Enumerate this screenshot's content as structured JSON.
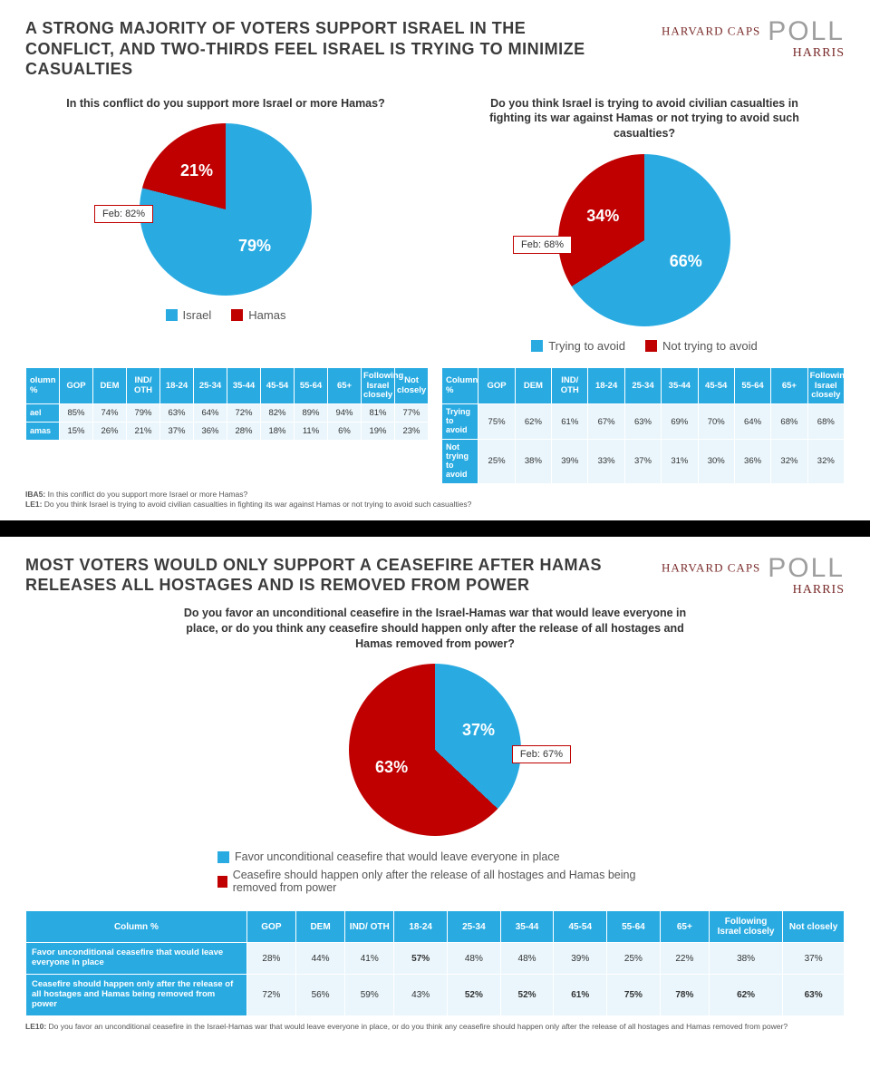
{
  "brand": {
    "line1": "HARVARD CAPS",
    "line2": "HARRIS",
    "poll": "POLL"
  },
  "colors": {
    "blue": "#29abe2",
    "red": "#c00000",
    "tableHeader": "#29abe2",
    "tableCell": "#eaf6fc",
    "text": "#333333"
  },
  "panel1": {
    "headline": "A STRONG MAJORITY OF VOTERS SUPPORT ISRAEL IN THE CONFLICT, AND TWO-THIRDS FEEL ISRAEL IS TRYING TO MINIMIZE CASUALTIES",
    "chartA": {
      "type": "pie",
      "question": "In this conflict do you support more Israel or more Hamas?",
      "slices": [
        {
          "label": "Israel",
          "value": 79,
          "color": "#29abe2"
        },
        {
          "label": "Hamas",
          "value": 21,
          "color": "#c00000"
        }
      ],
      "feb": "Feb: 82%",
      "legend": [
        "Israel",
        "Hamas"
      ],
      "label_fontsize": 18,
      "start_angle": -90
    },
    "chartB": {
      "type": "pie",
      "question": "Do you think Israel is trying to avoid civilian casualties in fighting its war against Hamas or not trying to avoid such casualties?",
      "slices": [
        {
          "label": "Trying to avoid",
          "value": 66,
          "color": "#29abe2"
        },
        {
          "label": "Not trying to avoid",
          "value": 34,
          "color": "#c00000"
        }
      ],
      "feb": "Feb: 68%",
      "legend": [
        "Trying to avoid",
        "Not trying to avoid"
      ],
      "label_fontsize": 18,
      "start_angle": -90
    },
    "tableA": {
      "columns": [
        "olumn %",
        "GOP",
        "DEM",
        "IND/ OTH",
        "18-24",
        "25-34",
        "35-44",
        "45-54",
        "55-64",
        "65+",
        "Following Israel closely",
        "Not closely"
      ],
      "rows": [
        {
          "head": "ael",
          "cells": [
            "85%",
            "74%",
            "79%",
            "63%",
            "64%",
            "72%",
            "82%",
            "89%",
            "94%",
            "81%",
            "77%"
          ]
        },
        {
          "head": "amas",
          "cells": [
            "15%",
            "26%",
            "21%",
            "37%",
            "36%",
            "28%",
            "18%",
            "11%",
            "6%",
            "19%",
            "23%"
          ]
        }
      ]
    },
    "tableB": {
      "columns": [
        "Column %",
        "GOP",
        "DEM",
        "IND/ OTH",
        "18-24",
        "25-34",
        "35-44",
        "45-54",
        "55-64",
        "65+",
        "Following Israel closely"
      ],
      "rows": [
        {
          "head": "Trying to avoid",
          "cells": [
            "75%",
            "62%",
            "61%",
            "67%",
            "63%",
            "69%",
            "70%",
            "64%",
            "68%",
            "68%"
          ]
        },
        {
          "head": "Not trying to avoid",
          "cells": [
            "25%",
            "38%",
            "39%",
            "33%",
            "37%",
            "31%",
            "30%",
            "36%",
            "32%",
            "32%"
          ]
        }
      ]
    },
    "footnotes": [
      {
        "code": "IBA5:",
        "text": "In this conflict do you support more Israel or more Hamas?"
      },
      {
        "code": "LE1:",
        "text": "Do you think Israel is trying to avoid civilian casualties in fighting its war against Hamas or not trying to avoid such casualties?"
      }
    ]
  },
  "panel2": {
    "headline": "MOST VOTERS WOULD ONLY SUPPORT A CEASEFIRE AFTER HAMAS RELEASES ALL HOSTAGES AND IS REMOVED FROM POWER",
    "chart": {
      "type": "pie",
      "question": "Do you favor an unconditional ceasefire in the Israel-Hamas war that would leave everyone in place, or do you think any ceasefire should happen only after the release of all hostages and Hamas removed from power?",
      "slices": [
        {
          "label": "Favor unconditional ceasefire that would leave everyone in place",
          "value": 37,
          "color": "#29abe2"
        },
        {
          "label": "Ceasefire should happen only after the release of all hostages and Hamas being removed from power",
          "value": 63,
          "color": "#c00000"
        }
      ],
      "feb": "Feb: 67%",
      "label_fontsize": 18,
      "start_angle": -90
    },
    "table": {
      "columns": [
        "Column %",
        "GOP",
        "DEM",
        "IND/ OTH",
        "18-24",
        "25-34",
        "35-44",
        "45-54",
        "55-64",
        "65+",
        "Following Israel closely",
        "Not closely"
      ],
      "col_widths": [
        "27%",
        "6%",
        "6%",
        "6%",
        "6.5%",
        "6.5%",
        "6.5%",
        "6.5%",
        "6.5%",
        "6%",
        "9%",
        "7.5%"
      ],
      "rows": [
        {
          "head": "Favor unconditional ceasefire that would leave everyone in place",
          "cells": [
            "28%",
            "44%",
            "41%",
            "57%",
            "48%",
            "48%",
            "39%",
            "25%",
            "22%",
            "38%",
            "37%"
          ],
          "bold_idx": [
            3
          ]
        },
        {
          "head": "Ceasefire should happen only after the release of all hostages and Hamas being removed from power",
          "cells": [
            "72%",
            "56%",
            "59%",
            "43%",
            "52%",
            "52%",
            "61%",
            "75%",
            "78%",
            "62%",
            "63%"
          ],
          "bold_idx": [
            4,
            5,
            6,
            7,
            8,
            9,
            10
          ]
        }
      ]
    },
    "footnote": {
      "code": "LE10:",
      "text": "Do you favor an unconditional ceasefire in the Israel-Hamas war that would leave everyone in place, or do you think any ceasefire should happen only after the release of all hostages and Hamas removed from power?"
    }
  }
}
